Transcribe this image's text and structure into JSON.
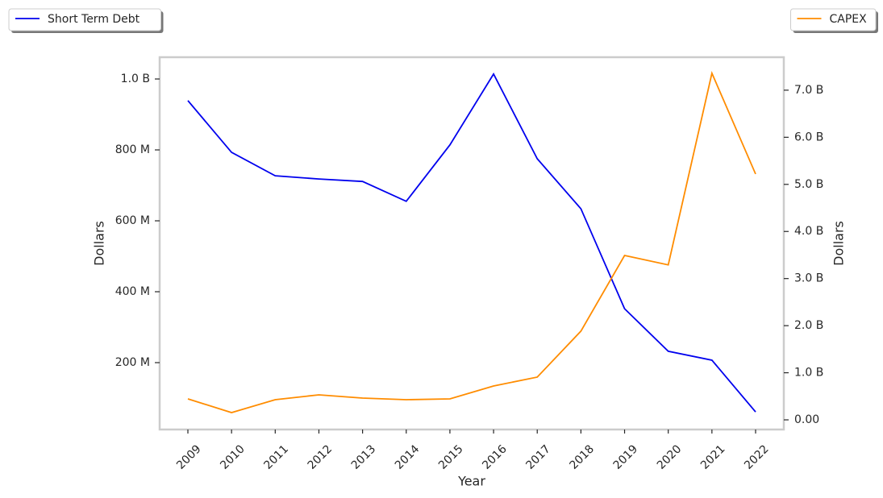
{
  "chart_data": {
    "type": "line",
    "x_label": "Year",
    "y_label": "Dollars",
    "y2_label": "Dollars",
    "categories": [
      "2009",
      "2010",
      "2011",
      "2012",
      "2013",
      "2014",
      "2015",
      "2016",
      "2017",
      "2018",
      "2019",
      "2020",
      "2021",
      "2022"
    ],
    "series": [
      {
        "name": "Short Term Debt",
        "color": "#0000ee",
        "legend": "upper left",
        "values": [
          939000000,
          793000000,
          727000000,
          718000000,
          711000000,
          655000000,
          814000000,
          1014000000,
          775000000,
          634000000,
          352000000,
          232000000,
          207000000,
          61000000
        ]
      },
      {
        "name": "CAPEX",
        "color": "#ff8c00",
        "legend": "upper right",
        "axis": "y2",
        "values": [
          445000000,
          154000000,
          428000000,
          531000000,
          462000000,
          428000000,
          445000000,
          719000000,
          908000000,
          1884000000,
          3490000000,
          3290000000,
          7360000000,
          5220000000
        ]
      }
    ],
    "ylim": [
      11400000,
      1061400000
    ],
    "yticks": [
      {
        "value": 200000000,
        "label": "200 M"
      },
      {
        "value": 400000000,
        "label": "400 M"
      },
      {
        "value": 600000000,
        "label": "600 M"
      },
      {
        "value": 800000000,
        "label": "800 M"
      },
      {
        "value": 1000000000,
        "label": "1.0 B"
      }
    ],
    "y2lim": [
      -205000000,
      7700000000
    ],
    "y2ticks": [
      {
        "value": 0,
        "label": "0.00"
      },
      {
        "value": 1000000000,
        "label": "1.0 B"
      },
      {
        "value": 2000000000,
        "label": "2.0 B"
      },
      {
        "value": 3000000000,
        "label": "3.0 B"
      },
      {
        "value": 4000000000,
        "label": "4.0 B"
      },
      {
        "value": 5000000000,
        "label": "5.0 B"
      },
      {
        "value": 6000000000,
        "label": "6.0 B"
      },
      {
        "value": 7000000000,
        "label": "7.0 B"
      }
    ],
    "grid": false
  }
}
